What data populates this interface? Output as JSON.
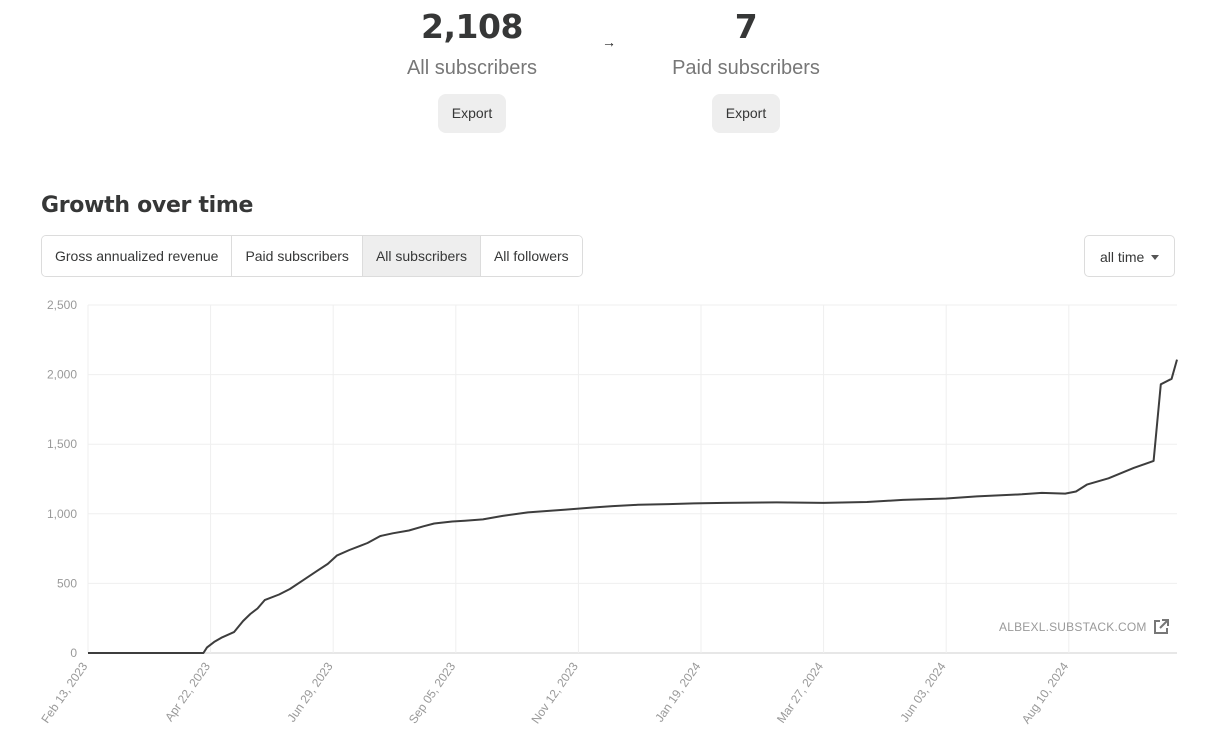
{
  "stats": {
    "all": {
      "value": "2,108",
      "label": "All subscribers",
      "export_label": "Export"
    },
    "paid": {
      "value": "7",
      "label": "Paid subscribers",
      "export_label": "Export"
    },
    "arrow": "→"
  },
  "section_title": "Growth over time",
  "tabs": [
    {
      "label": "Gross annualized revenue",
      "active": false
    },
    {
      "label": "Paid subscribers",
      "active": false
    },
    {
      "label": "All subscribers",
      "active": true
    },
    {
      "label": "All followers",
      "active": false
    }
  ],
  "range": {
    "selected": "all time"
  },
  "watermark": {
    "text": "ALBEXL.SUBSTACK.COM",
    "icon": "external-link-icon"
  },
  "colors": {
    "line": "#3d3d3d",
    "grid": "#efefef",
    "tick_text": "#999999",
    "active_tab": "#eeeeee"
  },
  "chart_data": {
    "type": "line",
    "title": "",
    "xlabel": "",
    "ylabel": "",
    "ylim": [
      0,
      2500
    ],
    "y_ticks": [
      0,
      500,
      1000,
      1500,
      2000,
      2500
    ],
    "y_tick_labels": [
      "0",
      "500",
      "1,000",
      "1,500",
      "2,000",
      "2,500"
    ],
    "x_ticks": [
      "2023-02-13",
      "2023-04-22",
      "2023-06-29",
      "2023-09-05",
      "2023-11-12",
      "2024-01-19",
      "2024-03-27",
      "2024-06-03",
      "2024-08-10"
    ],
    "x_tick_labels": [
      "Feb 13, 2023",
      "Apr 22, 2023",
      "Jun 29, 2023",
      "Sep 05, 2023",
      "Nov 12, 2023",
      "Jan 19, 2024",
      "Mar 27, 2024",
      "Jun 03, 2024",
      "Aug 10, 2024"
    ],
    "xlim": [
      "2023-02-13",
      "2024-10-09"
    ],
    "grid": true,
    "series": [
      {
        "x": [
          "2023-02-13",
          "2023-04-18",
          "2023-04-20",
          "2023-04-24",
          "2023-04-28",
          "2023-05-05",
          "2023-05-10",
          "2023-05-14",
          "2023-05-18",
          "2023-05-22",
          "2023-05-30",
          "2023-06-05",
          "2023-06-12",
          "2023-06-20",
          "2023-06-26",
          "2023-07-01",
          "2023-07-08",
          "2023-07-14",
          "2023-07-18",
          "2023-07-25",
          "2023-08-01",
          "2023-08-10",
          "2023-08-18",
          "2023-08-24",
          "2023-09-03",
          "2023-09-10",
          "2023-09-20",
          "2023-10-01",
          "2023-10-15",
          "2023-11-05",
          "2023-11-20",
          "2023-12-01",
          "2023-12-15",
          "2024-01-01",
          "2024-01-15",
          "2024-02-01",
          "2024-03-01",
          "2024-03-27",
          "2024-04-20",
          "2024-05-10",
          "2024-06-03",
          "2024-06-20",
          "2024-07-15",
          "2024-07-26",
          "2024-08-08",
          "2024-08-14",
          "2024-08-20",
          "2024-09-01",
          "2024-09-15",
          "2024-09-26",
          "2024-09-30",
          "2024-10-06",
          "2024-10-09"
        ],
        "y": [
          0,
          0,
          40,
          80,
          110,
          150,
          230,
          280,
          320,
          380,
          420,
          460,
          520,
          590,
          640,
          700,
          740,
          770,
          790,
          840,
          860,
          880,
          910,
          930,
          945,
          950,
          960,
          985,
          1010,
          1030,
          1045,
          1055,
          1065,
          1070,
          1075,
          1078,
          1082,
          1078,
          1085,
          1100,
          1110,
          1125,
          1140,
          1150,
          1145,
          1160,
          1210,
          1255,
          1330,
          1380,
          1930,
          1970,
          2108
        ]
      }
    ]
  }
}
